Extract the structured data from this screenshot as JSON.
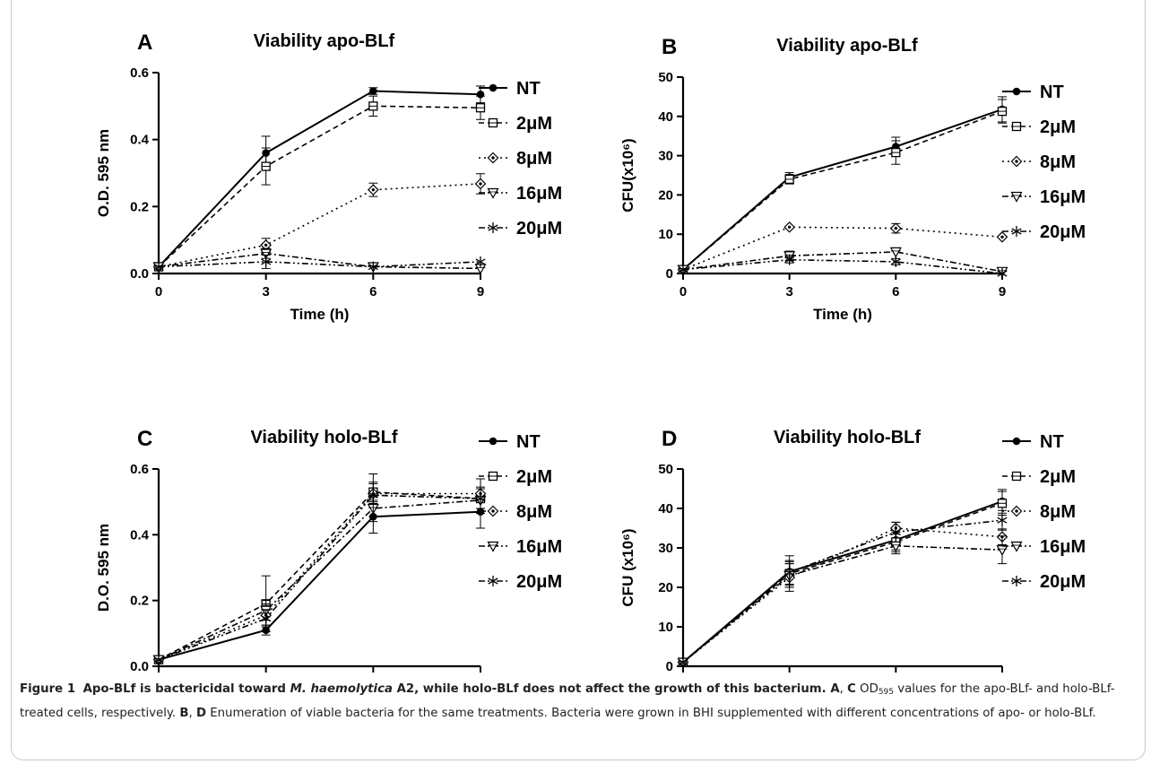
{
  "panels": [
    {
      "letter": "A",
      "title": "Viability apo-BLf"
    },
    {
      "letter": "B",
      "title": "Viability apo-BLf"
    },
    {
      "letter": "C",
      "title": "Viability holo-BLf"
    },
    {
      "letter": "D",
      "title": "Viability holo-BLf"
    }
  ],
  "chart_data": [
    {
      "type": "line",
      "panel": "A",
      "title": "Viability apo-BLf",
      "xlabel": "Time (h)",
      "ylabel": "O.D. 595 nm",
      "x": [
        0,
        3,
        6,
        9
      ],
      "xlim": [
        0,
        9
      ],
      "ylim": [
        0,
        0.6
      ],
      "xticks": [
        "0",
        "3",
        "6",
        "9"
      ],
      "yticks": [
        "0.0",
        "0.2",
        "0.4",
        "0.6"
      ],
      "legend_position": "right",
      "series": [
        {
          "name": "NT",
          "values": [
            0.02,
            0.36,
            0.545,
            0.535
          ],
          "errors": [
            0.005,
            0.05,
            0.01,
            0.025
          ]
        },
        {
          "name": "2μM",
          "values": [
            0.02,
            0.32,
            0.5,
            0.495
          ],
          "errors": [
            0.005,
            0.055,
            0.03,
            0.035
          ]
        },
        {
          "name": "8μM",
          "values": [
            0.02,
            0.085,
            0.25,
            0.268
          ],
          "errors": [
            0.005,
            0.02,
            0.02,
            0.03
          ]
        },
        {
          "name": "16μM",
          "values": [
            0.02,
            0.06,
            0.02,
            0.015
          ],
          "errors": [
            0.005,
            0.015,
            0.005,
            0.005
          ]
        },
        {
          "name": "20μM",
          "values": [
            0.02,
            0.035,
            0.02,
            0.035
          ],
          "errors": [
            0.005,
            0.02,
            0.005,
            0.005
          ]
        }
      ]
    },
    {
      "type": "line",
      "panel": "B",
      "title": "Viability apo-BLf",
      "xlabel": "Time (h)",
      "ylabel": "CFU(x10⁶)",
      "x": [
        0,
        3,
        6,
        9
      ],
      "xlim": [
        0,
        9
      ],
      "ylim": [
        0,
        50
      ],
      "xticks": [
        "0",
        "3",
        "6",
        "9"
      ],
      "yticks": [
        "0",
        "10",
        "20",
        "30",
        "40",
        "50"
      ],
      "legend_position": "right",
      "series": [
        {
          "name": "NT",
          "values": [
            1,
            24.5,
            32.3,
            41.8
          ],
          "errors": [
            0.3,
            1.2,
            2.4,
            3.2
          ]
        },
        {
          "name": "2μM",
          "values": [
            1,
            24,
            30.8,
            41.3
          ],
          "errors": [
            0.3,
            1.2,
            3,
            3
          ]
        },
        {
          "name": "8μM",
          "values": [
            1,
            11.8,
            11.5,
            9.3
          ],
          "errors": [
            0.3,
            0.6,
            1.2,
            0.6
          ]
        },
        {
          "name": "16μM",
          "values": [
            1,
            4.5,
            5.5,
            0.5
          ],
          "errors": [
            0.3,
            1.2,
            0.6,
            0.4
          ]
        },
        {
          "name": "20μM",
          "values": [
            1,
            3.5,
            3,
            0
          ],
          "errors": [
            0.3,
            0.8,
            0.8,
            0.2
          ]
        }
      ]
    },
    {
      "type": "line",
      "panel": "C",
      "title": "Viability holo-BLf",
      "xlabel": "Time (h)",
      "ylabel": "D.O. 595 nm",
      "x": [
        0,
        3,
        6,
        9
      ],
      "xlim": [
        0,
        9
      ],
      "ylim": [
        0,
        0.6
      ],
      "xticks": [
        "0",
        "3",
        "6",
        "9"
      ],
      "yticks": [
        "0.0",
        "0.2",
        "0.4",
        "0.6"
      ],
      "legend_position": "right",
      "series": [
        {
          "name": "NT",
          "values": [
            0.02,
            0.11,
            0.455,
            0.47
          ],
          "errors": [
            0.005,
            0.015,
            0.05,
            0.05
          ]
        },
        {
          "name": "2μM",
          "values": [
            0.02,
            0.19,
            0.53,
            0.51
          ],
          "errors": [
            0.005,
            0.085,
            0.03,
            0.03
          ]
        },
        {
          "name": "8μM",
          "values": [
            0.02,
            0.155,
            0.525,
            0.525
          ],
          "errors": [
            0.005,
            0.03,
            0.03,
            0.045
          ]
        },
        {
          "name": "16μM",
          "values": [
            0.02,
            0.17,
            0.48,
            0.505
          ],
          "errors": [
            0.005,
            0.03,
            0.04,
            0.04
          ]
        },
        {
          "name": "20μM",
          "values": [
            0.02,
            0.145,
            0.52,
            0.51
          ],
          "errors": [
            0.005,
            0.025,
            0.065,
            0.03
          ]
        }
      ]
    },
    {
      "type": "line",
      "panel": "D",
      "title": "Viability holo-BLf",
      "xlabel": "Time (h)",
      "ylabel": "CFU (x10⁶)",
      "x": [
        0,
        3,
        6,
        9
      ],
      "xlim": [
        0,
        9
      ],
      "ylim": [
        0,
        50
      ],
      "xticks": [
        "0",
        "3",
        "6",
        "9"
      ],
      "yticks": [
        "0",
        "10",
        "20",
        "30",
        "40",
        "50"
      ],
      "legend_position": "right",
      "series": [
        {
          "name": "NT",
          "values": [
            1,
            24,
            32,
            41.8
          ],
          "errors": [
            0.3,
            4,
            2.5,
            3
          ]
        },
        {
          "name": "2μM",
          "values": [
            1,
            23.5,
            31.5,
            41.3
          ],
          "errors": [
            0.3,
            3,
            2.5,
            3
          ]
        },
        {
          "name": "8μM",
          "values": [
            1,
            22.5,
            35,
            32.8
          ],
          "errors": [
            0.3,
            3.5,
            1.5,
            2
          ]
        },
        {
          "name": "16μM",
          "values": [
            1,
            23,
            30.5,
            29.5
          ],
          "errors": [
            0.3,
            3,
            2,
            3.5
          ]
        },
        {
          "name": "20μM",
          "values": [
            1,
            23.8,
            34,
            37
          ],
          "errors": [
            0.3,
            3,
            2.5,
            2.5
          ]
        }
      ]
    }
  ],
  "caption": {
    "label": "Figure 1",
    "title_a": "Apo-BLf is bactericidal toward ",
    "title_species": "M. haemolytica",
    "title_b": " A2, while holo-BLf does not affect the growth of this bacterium. ",
    "ref_a": "A",
    "sep1": ", ",
    "ref_c": "C",
    "od_prefix": " OD",
    "od_sub": "595",
    "text_ac": " values for the apo-BLf- and holo-BLf-treated cells, respectively. ",
    "ref_b": "B",
    "sep2": ", ",
    "ref_d": "D",
    "text_bd": " Enumeration of viable bacteria for the same treatments. Bacteria were grown in BHI supplemented with different concentrations of apo- or holo-BLf."
  }
}
